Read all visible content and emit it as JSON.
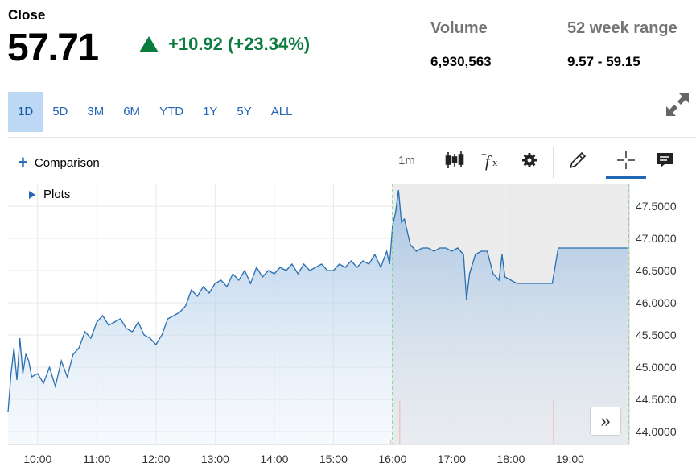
{
  "quote": {
    "close_label": "Close",
    "price": "57.71",
    "change": "+10.92 (+23.34%)",
    "change_color": "#0a7c3e",
    "volume_label": "Volume",
    "volume": "6,930,563",
    "range_label": "52 week range",
    "range": "9.57 - 59.15"
  },
  "tabs": [
    {
      "label": "1D",
      "active": true
    },
    {
      "label": "5D"
    },
    {
      "label": "3M"
    },
    {
      "label": "6M"
    },
    {
      "label": "YTD"
    },
    {
      "label": "1Y"
    },
    {
      "label": "5Y"
    },
    {
      "label": "ALL"
    }
  ],
  "toolbar": {
    "comparison_label": "Comparison",
    "interval": "1m",
    "plots_label": "Plots",
    "icons": [
      "candlestick-icon",
      "function-icon",
      "gear-icon",
      "pencil-icon",
      "crosshair-icon",
      "comment-icon",
      "expand-icon",
      "chevron-double-right-icon"
    ]
  },
  "chart_data": {
    "type": "area",
    "ylim": [
      43.8,
      47.85
    ],
    "y_ticks": [
      "47.5000",
      "47.0000",
      "46.5000",
      "46.0000",
      "45.5000",
      "45.0000",
      "44.5000",
      "44.0000"
    ],
    "y_tick_values": [
      47.5,
      47.0,
      46.5,
      46.0,
      45.5,
      45.0,
      44.5,
      44.0
    ],
    "x_ticks": [
      "10:00",
      "11:00",
      "12:00",
      "13:00",
      "14:00",
      "15:00",
      "16:00",
      "17:00",
      "18:00",
      "19:00"
    ],
    "x_tick_values": [
      10,
      11,
      12,
      13,
      14,
      15,
      16,
      17,
      18,
      19
    ],
    "xlim": [
      9.5,
      20.0
    ],
    "after_hours_start": 16.0,
    "line_color": "#2a6fb0",
    "grid": true,
    "x": [
      9.5,
      9.55,
      9.6,
      9.65,
      9.7,
      9.75,
      9.8,
      9.85,
      9.9,
      10.0,
      10.1,
      10.2,
      10.3,
      10.4,
      10.5,
      10.6,
      10.7,
      10.8,
      10.9,
      11.0,
      11.1,
      11.2,
      11.3,
      11.4,
      11.5,
      11.6,
      11.7,
      11.8,
      11.9,
      12.0,
      12.1,
      12.2,
      12.3,
      12.4,
      12.5,
      12.6,
      12.7,
      12.8,
      12.9,
      13.0,
      13.1,
      13.2,
      13.3,
      13.4,
      13.5,
      13.6,
      13.7,
      13.8,
      13.9,
      14.0,
      14.1,
      14.2,
      14.3,
      14.4,
      14.5,
      14.6,
      14.7,
      14.8,
      14.9,
      15.0,
      15.1,
      15.2,
      15.3,
      15.4,
      15.5,
      15.6,
      15.7,
      15.8,
      15.9,
      15.95,
      16.0,
      16.05,
      16.1,
      16.15,
      16.2,
      16.25,
      16.3,
      16.4,
      16.5,
      16.6,
      16.7,
      16.8,
      16.9,
      17.0,
      17.1,
      17.2,
      17.25,
      17.3,
      17.4,
      17.5,
      17.6,
      17.7,
      17.8,
      17.85,
      17.9,
      18.0,
      18.1,
      18.2,
      18.3,
      18.4,
      18.5,
      18.6,
      18.7,
      18.8,
      18.9,
      19.0,
      19.1,
      19.2,
      19.3,
      19.4,
      19.5,
      19.6,
      19.7,
      19.8,
      19.9,
      19.97
    ],
    "y": [
      44.3,
      44.9,
      45.3,
      44.8,
      45.45,
      44.9,
      45.2,
      45.1,
      44.85,
      44.9,
      44.75,
      45.0,
      44.7,
      45.1,
      44.85,
      45.2,
      45.3,
      45.55,
      45.45,
      45.7,
      45.8,
      45.65,
      45.7,
      45.75,
      45.6,
      45.55,
      45.7,
      45.5,
      45.45,
      45.35,
      45.5,
      45.75,
      45.8,
      45.85,
      45.95,
      46.2,
      46.1,
      46.25,
      46.15,
      46.3,
      46.35,
      46.25,
      46.45,
      46.35,
      46.5,
      46.3,
      46.55,
      46.4,
      46.5,
      46.45,
      46.55,
      46.5,
      46.6,
      46.45,
      46.6,
      46.5,
      46.55,
      46.6,
      46.5,
      46.5,
      46.6,
      46.55,
      46.65,
      46.55,
      46.65,
      46.6,
      46.75,
      46.55,
      46.8,
      46.6,
      47.2,
      47.4,
      47.75,
      47.25,
      47.3,
      47.1,
      46.9,
      46.8,
      46.85,
      46.85,
      46.8,
      46.85,
      46.85,
      46.8,
      46.85,
      46.75,
      46.05,
      46.45,
      46.75,
      46.8,
      46.8,
      46.45,
      46.35,
      46.75,
      46.4,
      46.35,
      46.3,
      46.3,
      46.3,
      46.3,
      46.3,
      46.3,
      46.3,
      46.85,
      46.85,
      46.85,
      46.85,
      46.85,
      46.85,
      46.85,
      46.85,
      46.85,
      46.85,
      46.85,
      46.85,
      46.85
    ],
    "volume_spikes": [
      {
        "x": 16.12,
        "v": 0.68
      },
      {
        "x": 18.72,
        "v": 0.7
      },
      {
        "x": 15.97,
        "v": 0.08
      }
    ]
  }
}
